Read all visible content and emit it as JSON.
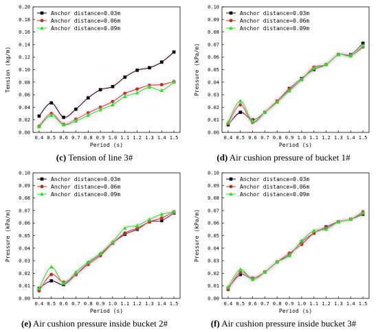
{
  "chart_data": [
    {
      "type": "line",
      "caption_letter": "(c)",
      "caption_text": "Tension of line 3#",
      "xlabel": "Period (s)",
      "ylabel": "Tension (kg/m)",
      "x": [
        0.4,
        0.5,
        0.6,
        0.7,
        0.8,
        0.9,
        1.0,
        1.1,
        1.2,
        1.3,
        1.4,
        1.5
      ],
      "xticks": [
        "0.4",
        "0.5",
        "0.6",
        "0.7",
        "0.8",
        "0.9",
        "1.0",
        "1.1",
        "1.2",
        "1.3",
        "1.4",
        "1.5"
      ],
      "xlim": [
        0.35,
        1.55
      ],
      "ylim": [
        0,
        0.2
      ],
      "yticks": [
        "0.00",
        "0.02",
        "0.04",
        "0.06",
        "0.08",
        "0.10",
        "0.12",
        "0.14",
        "0.16",
        "0.18",
        "0.20"
      ],
      "legend": "top-left",
      "series": [
        {
          "name": "Anchor distance=0.03m",
          "color": "#000000",
          "marker": "square",
          "values": [
            0.026,
            0.047,
            0.024,
            0.037,
            0.055,
            0.068,
            0.073,
            0.088,
            0.099,
            0.103,
            0.112,
            0.128
          ]
        },
        {
          "name": "Anchor distance=0.06m",
          "color": "#b0361e",
          "marker": "circle",
          "values": [
            0.01,
            0.03,
            0.013,
            0.021,
            0.031,
            0.04,
            0.049,
            0.062,
            0.069,
            0.075,
            0.076,
            0.081
          ]
        },
        {
          "name": "Anchor distance=0.09m",
          "color": "#1fe81f",
          "marker": "triangle",
          "values": [
            0.009,
            0.027,
            0.012,
            0.018,
            0.027,
            0.036,
            0.044,
            0.057,
            0.063,
            0.072,
            0.067,
            0.08
          ]
        }
      ]
    },
    {
      "type": "line",
      "caption_letter": "(d)",
      "caption_text": "Air cushion pressure of bucket 1#",
      "xlabel": "Period (s)",
      "ylabel": "Pressure (kPa/m)",
      "x": [
        0.4,
        0.5,
        0.6,
        0.7,
        0.8,
        0.9,
        1.0,
        1.1,
        1.2,
        1.3,
        1.4,
        1.5
      ],
      "xticks": [
        "0.4",
        "0.5",
        "0.6",
        "0.7",
        "0.8",
        "0.9",
        "1.0",
        "1.1",
        "1.2",
        "1.3",
        "1.4",
        "1.5"
      ],
      "xlim": [
        0.35,
        1.55
      ],
      "ylim": [
        0,
        0.1
      ],
      "yticks": [
        "0.00",
        "0.01",
        "0.02",
        "0.03",
        "0.04",
        "0.05",
        "0.06",
        "0.07",
        "0.08",
        "0.09",
        "0.10"
      ],
      "legend": "top-left",
      "series": [
        {
          "name": "Anchor distance=0.03m",
          "color": "#000000",
          "marker": "square",
          "values": [
            0.006,
            0.016,
            0.01,
            0.016,
            0.025,
            0.035,
            0.043,
            0.05,
            0.054,
            0.062,
            0.062,
            0.071
          ]
        },
        {
          "name": "Anchor distance=0.06m",
          "color": "#b0361e",
          "marker": "circle",
          "values": [
            0.007,
            0.022,
            0.008,
            0.016,
            0.025,
            0.034,
            0.042,
            0.052,
            0.054,
            0.062,
            0.061,
            0.068
          ]
        },
        {
          "name": "Anchor distance=0.09m",
          "color": "#1fe81f",
          "marker": "triangle",
          "values": [
            0.008,
            0.025,
            0.009,
            0.016,
            0.024,
            0.033,
            0.042,
            0.051,
            0.054,
            0.062,
            0.061,
            0.069
          ]
        }
      ]
    },
    {
      "type": "line",
      "caption_letter": "(e)",
      "caption_text": "Air cushion pressure inside bucket 2#",
      "xlabel": "Period (s)",
      "ylabel": "Pressure (kPa/m)",
      "x": [
        0.4,
        0.5,
        0.6,
        0.7,
        0.8,
        0.9,
        1.0,
        1.1,
        1.2,
        1.3,
        1.4,
        1.5
      ],
      "xticks": [
        "0.4",
        "0.5",
        "0.6",
        "0.7",
        "0.8",
        "0.9",
        "1.0",
        "1.1",
        "1.2",
        "1.3",
        "1.4",
        "1.5"
      ],
      "xlim": [
        0.35,
        1.55
      ],
      "ylim": [
        0,
        0.1
      ],
      "yticks": [
        "0.00",
        "0.01",
        "0.02",
        "0.03",
        "0.04",
        "0.05",
        "0.06",
        "0.07",
        "0.08",
        "0.09",
        "0.10"
      ],
      "legend": "top-left",
      "series": [
        {
          "name": "Anchor distance=0.03m",
          "color": "#000000",
          "marker": "square",
          "values": [
            0.008,
            0.014,
            0.011,
            0.019,
            0.028,
            0.035,
            0.044,
            0.051,
            0.055,
            0.061,
            0.062,
            0.068
          ]
        },
        {
          "name": "Anchor distance=0.06m",
          "color": "#b0361e",
          "marker": "circle",
          "values": [
            0.006,
            0.019,
            0.013,
            0.019,
            0.027,
            0.034,
            0.044,
            0.052,
            0.056,
            0.061,
            0.064,
            0.069
          ]
        },
        {
          "name": "Anchor distance=0.09m",
          "color": "#1fe81f",
          "marker": "triangle",
          "values": [
            0.008,
            0.025,
            0.012,
            0.021,
            0.029,
            0.036,
            0.045,
            0.056,
            0.058,
            0.063,
            0.067,
            0.069
          ]
        }
      ]
    },
    {
      "type": "line",
      "caption_letter": "(f)",
      "caption_text": "Air cushion pressure inside bucket 3#",
      "xlabel": "Period (s)",
      "ylabel": "Pressure (kPa/m)",
      "x": [
        0.4,
        0.5,
        0.6,
        0.7,
        0.8,
        0.9,
        1.0,
        1.1,
        1.2,
        1.3,
        1.4,
        1.5
      ],
      "xticks": [
        "0.4",
        "0.5",
        "0.6",
        "0.7",
        "0.8",
        "0.9",
        "1.0",
        "1.1",
        "1.2",
        "1.3",
        "1.4",
        "1.5"
      ],
      "xlim": [
        0.35,
        1.55
      ],
      "ylim": [
        0,
        0.1
      ],
      "yticks": [
        "0.00",
        "0.01",
        "0.02",
        "0.03",
        "0.04",
        "0.05",
        "0.06",
        "0.07",
        "0.08",
        "0.09",
        "0.10"
      ],
      "legend": "top-left",
      "series": [
        {
          "name": "Anchor distance=0.03m",
          "color": "#000000",
          "marker": "square",
          "values": [
            0.008,
            0.019,
            0.016,
            0.021,
            0.029,
            0.035,
            0.045,
            0.052,
            0.057,
            0.061,
            0.063,
            0.067
          ]
        },
        {
          "name": "Anchor distance=0.06m",
          "color": "#b0361e",
          "marker": "circle",
          "values": [
            0.007,
            0.021,
            0.016,
            0.021,
            0.029,
            0.036,
            0.043,
            0.052,
            0.056,
            0.061,
            0.063,
            0.069
          ]
        },
        {
          "name": "Anchor distance=0.09m",
          "color": "#1fe81f",
          "marker": "triangle",
          "values": [
            0.009,
            0.023,
            0.015,
            0.021,
            0.029,
            0.034,
            0.046,
            0.054,
            0.055,
            0.061,
            0.063,
            0.068
          ]
        }
      ]
    }
  ]
}
